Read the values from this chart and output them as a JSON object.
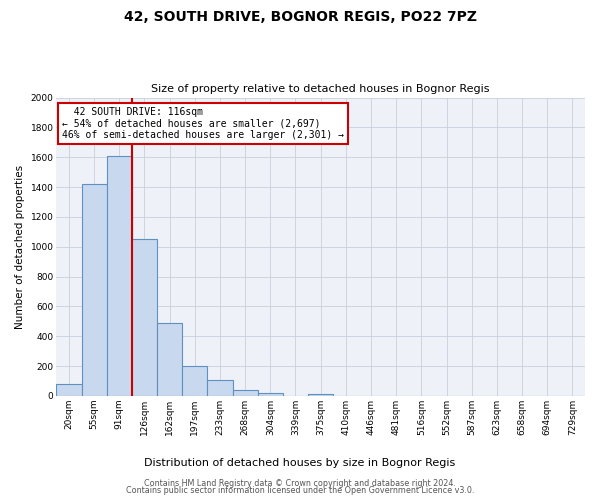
{
  "title": "42, SOUTH DRIVE, BOGNOR REGIS, PO22 7PZ",
  "subtitle": "Size of property relative to detached houses in Bognor Regis",
  "xlabel": "Distribution of detached houses by size in Bognor Regis",
  "ylabel": "Number of detached properties",
  "bin_labels": [
    "20sqm",
    "55sqm",
    "91sqm",
    "126sqm",
    "162sqm",
    "197sqm",
    "233sqm",
    "268sqm",
    "304sqm",
    "339sqm",
    "375sqm",
    "410sqm",
    "446sqm",
    "481sqm",
    "516sqm",
    "552sqm",
    "587sqm",
    "623sqm",
    "658sqm",
    "694sqm",
    "729sqm"
  ],
  "bar_values": [
    80,
    1420,
    1610,
    1050,
    490,
    200,
    105,
    40,
    20,
    0,
    15,
    0,
    0,
    0,
    0,
    0,
    0,
    0,
    0,
    0,
    0
  ],
  "bar_color": "#c8d8ee",
  "bar_edge_color": "#6090c0",
  "vline_x_index": 3,
  "vline_color": "#cc0000",
  "ylim": [
    0,
    2000
  ],
  "yticks": [
    0,
    200,
    400,
    600,
    800,
    1000,
    1200,
    1400,
    1600,
    1800,
    2000
  ],
  "annotation_title": "42 SOUTH DRIVE: 116sqm",
  "annotation_line1": "← 54% of detached houses are smaller (2,697)",
  "annotation_line2": "46% of semi-detached houses are larger (2,301) →",
  "annotation_box_facecolor": "#ffffff",
  "annotation_box_edgecolor": "#cc0000",
  "footer1": "Contains HM Land Registry data © Crown copyright and database right 2024.",
  "footer2": "Contains public sector information licensed under the Open Government Licence v3.0.",
  "bg_color": "#ffffff",
  "plot_bg_color": "#eef2f8",
  "grid_color": "#c8d0dc"
}
